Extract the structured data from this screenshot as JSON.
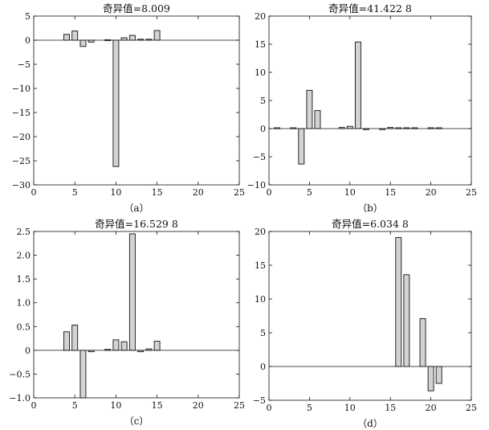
{
  "chart_data": [
    {
      "type": "bar",
      "title": "奇异值=8.009",
      "caption": "（a）",
      "xlim": [
        0,
        25
      ],
      "ylim": [
        -30,
        5
      ],
      "xticks": [
        0,
        5,
        10,
        15,
        20,
        25
      ],
      "yticks": [
        -30,
        -25,
        -20,
        -15,
        -10,
        -5,
        0,
        5
      ],
      "ytick_labels": [
        "−30",
        "−25",
        "−20",
        "−15",
        "−10",
        "−5",
        "0",
        "5"
      ],
      "x": [
        4,
        5,
        6,
        7,
        9,
        10,
        11,
        12,
        13,
        14,
        15
      ],
      "values": [
        1.2,
        1.9,
        -1.3,
        -0.4,
        0.1,
        -26.2,
        0.5,
        1.0,
        0.2,
        0.2,
        2.0
      ],
      "grid": false
    },
    {
      "type": "bar",
      "title": "奇异值=41.422 8",
      "caption": "（b）",
      "xlim": [
        0,
        25
      ],
      "ylim": [
        -10,
        20
      ],
      "xticks": [
        0,
        5,
        10,
        15,
        20,
        25
      ],
      "yticks": [
        -10,
        -5,
        0,
        5,
        10,
        15,
        20
      ],
      "ytick_labels": [
        "−10",
        "−5",
        "0",
        "5",
        "10",
        "15",
        "20"
      ],
      "x": [
        1,
        3,
        4,
        5,
        6,
        9,
        10,
        11,
        12,
        14,
        15,
        16,
        17,
        18,
        20,
        21
      ],
      "values": [
        0.15,
        0.15,
        -6.3,
        6.8,
        3.2,
        0.2,
        0.4,
        15.4,
        -0.1,
        -0.15,
        0.2,
        0.15,
        0.15,
        0.15,
        0.15,
        0.15
      ],
      "grid": false
    },
    {
      "type": "bar",
      "title": "奇异值=16.529 8",
      "caption": "（c）",
      "xlim": [
        0,
        25
      ],
      "ylim": [
        -1.0,
        2.5
      ],
      "xticks": [
        0,
        5,
        10,
        15,
        20,
        25
      ],
      "yticks": [
        -1.0,
        -0.5,
        0,
        0.5,
        1.0,
        1.5,
        2.0,
        2.5
      ],
      "ytick_labels": [
        "−1.0",
        "−0.5",
        "0",
        "0.5",
        "1.0",
        "1.5",
        "2.0",
        "2.5"
      ],
      "x": [
        4,
        5,
        6,
        7,
        9,
        10,
        11,
        12,
        13,
        14,
        15
      ],
      "values": [
        0.39,
        0.53,
        -1.0,
        -0.03,
        0.02,
        0.22,
        0.18,
        2.45,
        -0.03,
        0.03,
        0.19
      ],
      "grid": false
    },
    {
      "type": "bar",
      "title": "奇异值=6.034 8",
      "caption": "（d）",
      "xlim": [
        0,
        25
      ],
      "ylim": [
        -5,
        20
      ],
      "xticks": [
        0,
        5,
        10,
        15,
        20,
        25
      ],
      "yticks": [
        -5,
        0,
        5,
        10,
        15,
        20
      ],
      "ytick_labels": [
        "−5",
        "0",
        "5",
        "10",
        "15",
        "20"
      ],
      "x": [
        16,
        17,
        19,
        20,
        21
      ],
      "values": [
        19.1,
        13.6,
        7.1,
        -3.6,
        -2.5
      ],
      "grid": false
    }
  ],
  "colors": {
    "bar_fill": "#d3d3d3",
    "bar_edge": "#111111",
    "axis": "#111111",
    "zero_line": "#111111"
  }
}
